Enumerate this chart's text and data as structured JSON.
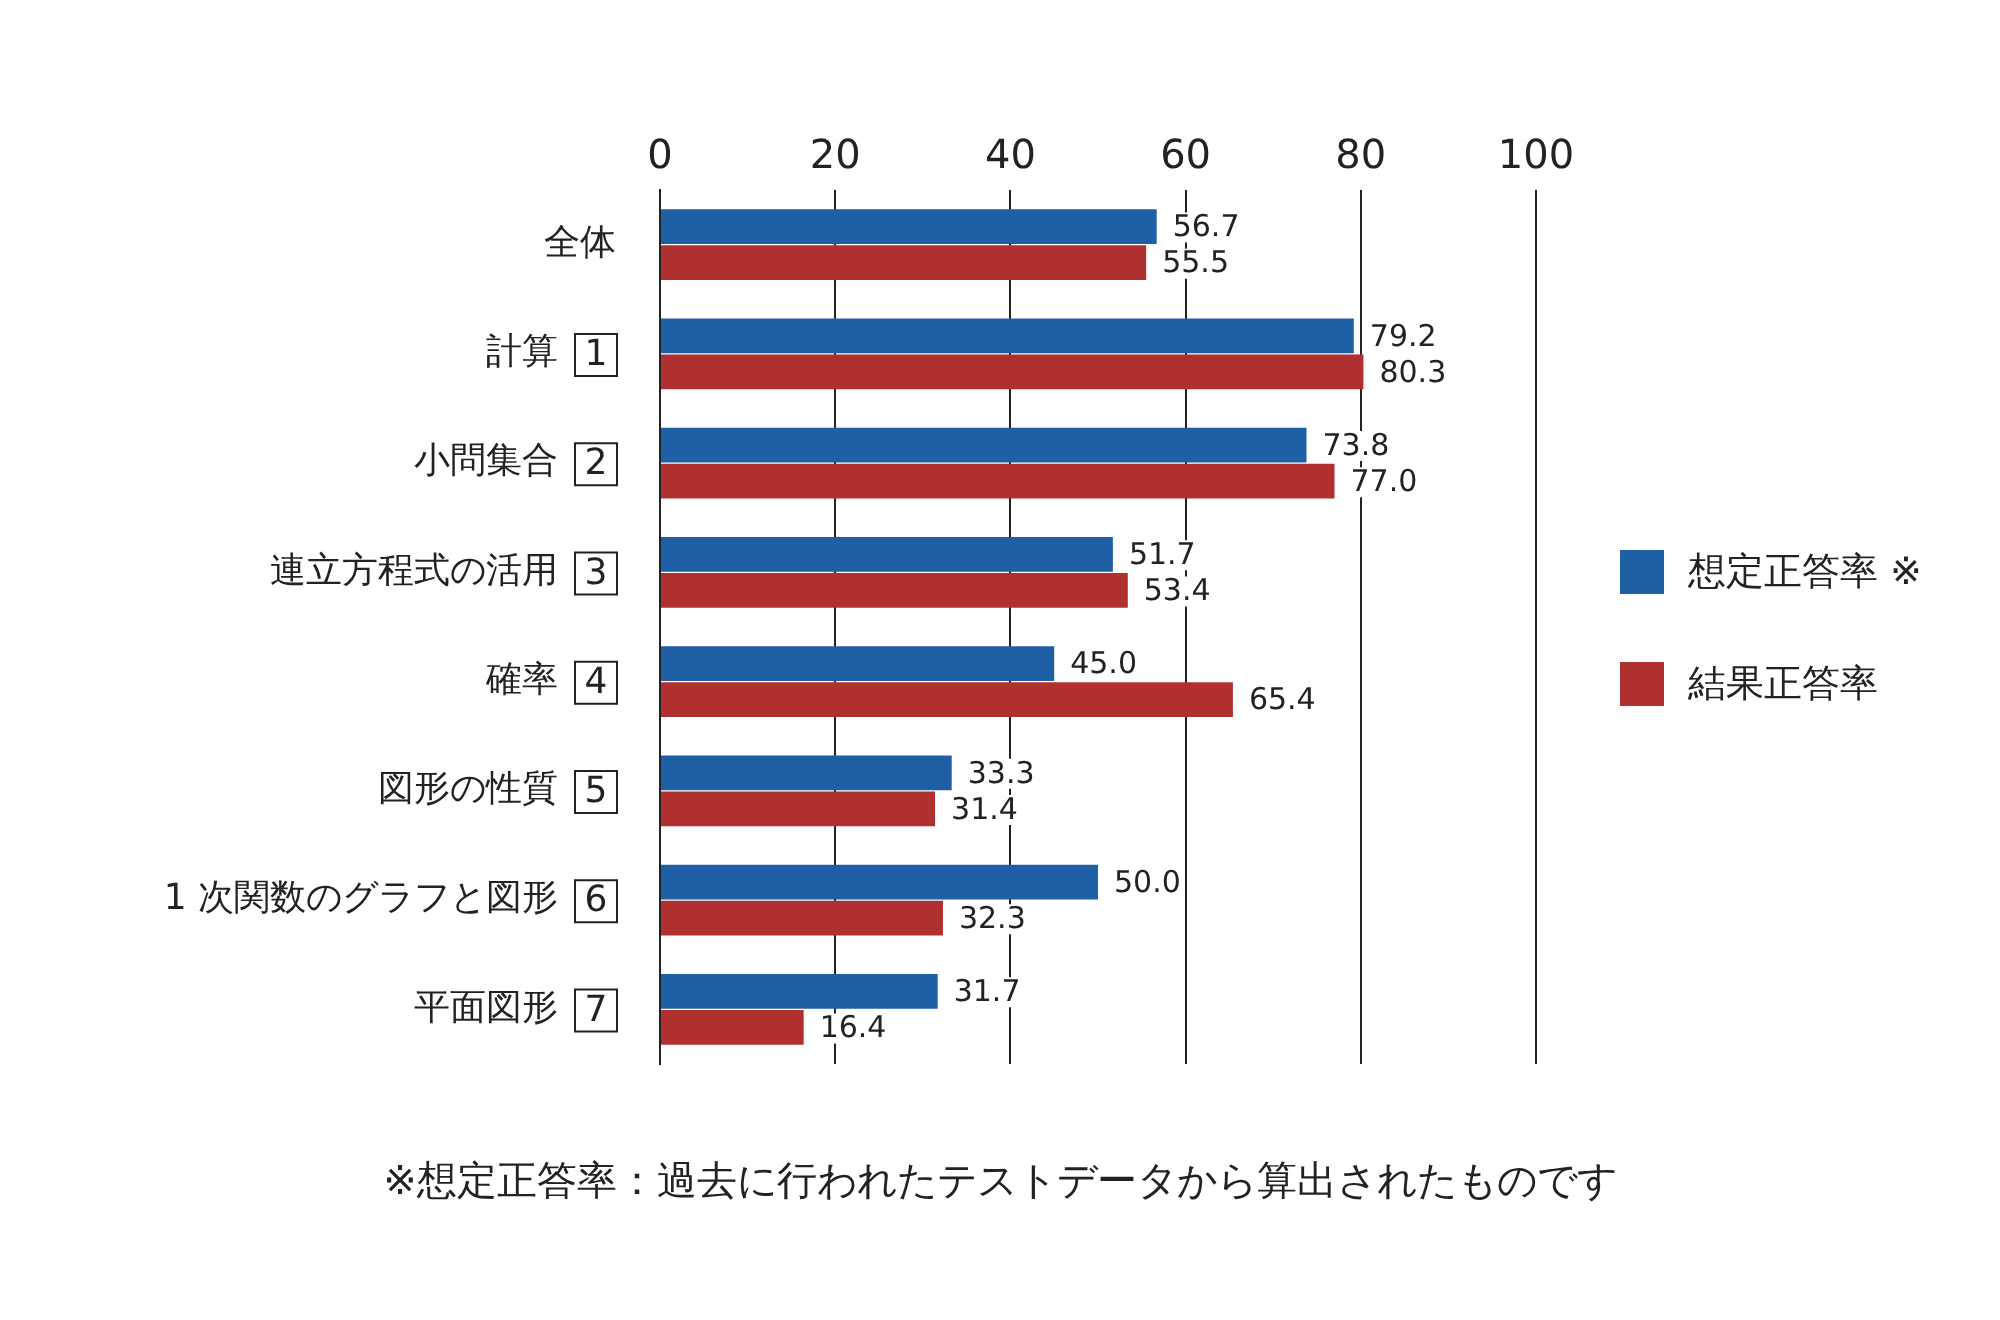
{
  "chart_data": {
    "type": "bar",
    "orientation": "horizontal",
    "categories": [
      "全体",
      "計算 1",
      "小問集合 2",
      "連立方程式の活用 3",
      "確率 4",
      "図形の性質 5",
      "1 次関数のグラフと図形 6",
      "平面図形 7"
    ],
    "series": [
      {
        "name": "想定正答率 ※",
        "color": "#1f5fa6",
        "values": [
          56.7,
          79.2,
          73.8,
          51.7,
          45.0,
          33.3,
          50.0,
          31.7
        ],
        "value_labels": [
          "56.7",
          "79.2",
          "73.8",
          "51.7",
          "45.0",
          "33.3",
          "50.0",
          "31.7"
        ]
      },
      {
        "name": "結果正答率",
        "color": "#b03030",
        "values": [
          55.5,
          80.3,
          77.0,
          53.4,
          65.4,
          31.4,
          32.3,
          16.4
        ],
        "value_labels": [
          "55.5",
          "80.3",
          "77.0",
          "53.4",
          "65.4",
          "31.4",
          "32.3",
          "16.4"
        ]
      }
    ],
    "xlim": [
      0,
      100
    ],
    "xticks": [
      0,
      20,
      40,
      60,
      80,
      100
    ],
    "grid": "x",
    "legend": "right",
    "annotations": [
      "※想定正答率：過去に行われたテストデータから算出されたものです"
    ]
  }
}
